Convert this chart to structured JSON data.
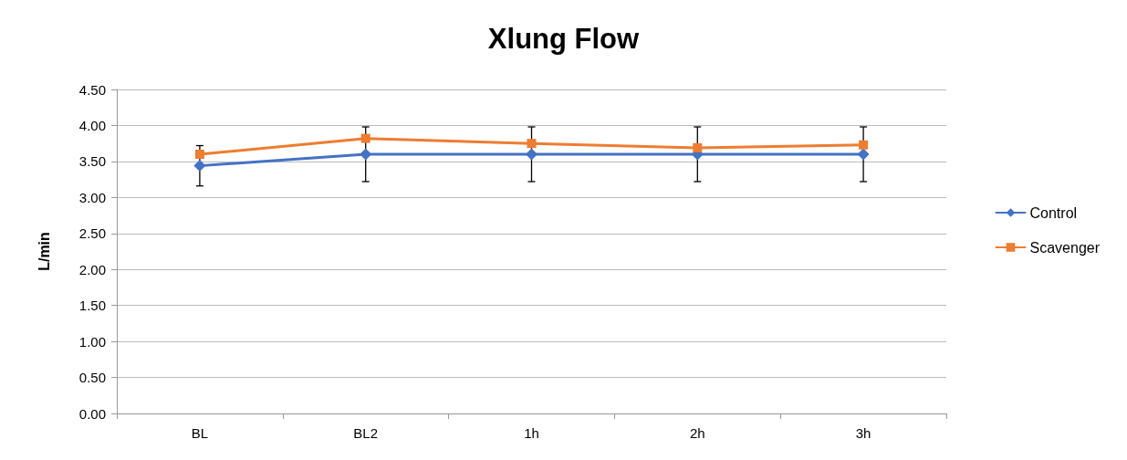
{
  "chart_data": {
    "type": "line",
    "title": "Xlung Flow",
    "ylabel": "L/min",
    "categories": [
      "BL",
      "BL2",
      "1h",
      "2h",
      "3h"
    ],
    "series": [
      {
        "name": "Control",
        "color": "#4472c4",
        "marker": "diamond",
        "values": [
          3.44,
          3.6,
          3.6,
          3.6,
          3.6
        ],
        "errors": [
          0.28,
          0.38,
          0.38,
          0.38,
          0.38
        ]
      },
      {
        "name": "Scavenger",
        "color": "#ed7d31",
        "marker": "square",
        "values": [
          3.6,
          3.82,
          3.75,
          3.69,
          3.73
        ]
      }
    ],
    "ylim": [
      0,
      4.5
    ],
    "yticks": [
      {
        "value": 0,
        "label": "0.00"
      },
      {
        "value": 0.5,
        "label": "0.50"
      },
      {
        "value": 1,
        "label": "1.00"
      },
      {
        "value": 1.5,
        "label": "1.50"
      },
      {
        "value": 2,
        "label": "2.00"
      },
      {
        "value": 2.5,
        "label": "2.50"
      },
      {
        "value": 3,
        "label": "3.00"
      },
      {
        "value": 3.5,
        "label": "3.50"
      },
      {
        "value": 4,
        "label": "4.00"
      },
      {
        "value": 4.5,
        "label": "4.50"
      }
    ],
    "grid": "y",
    "legend": "right"
  }
}
